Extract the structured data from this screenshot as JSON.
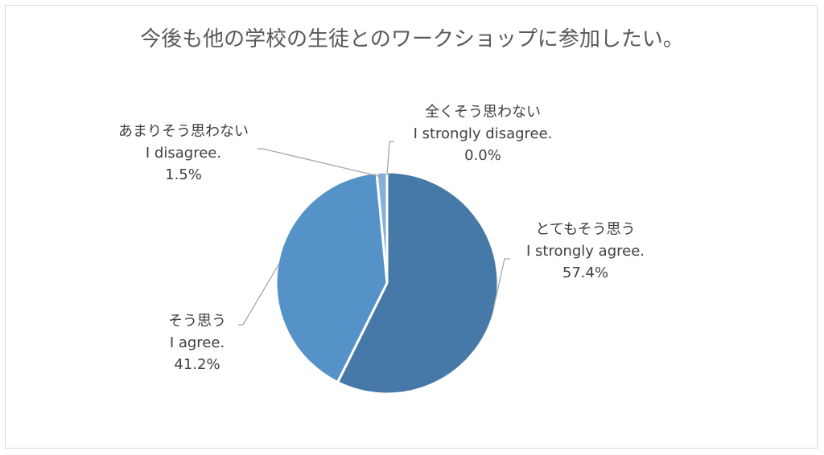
{
  "chart_data": {
    "type": "pie",
    "title": "今後も他の学校の生徒とのワークショップに参加したい。",
    "slices": [
      {
        "name_ja": "とてもそう思う",
        "name_en": "I strongly agree.",
        "value": 57.4,
        "label": "57.4%",
        "color": "#4779a8"
      },
      {
        "name_ja": "そう思う",
        "name_en": "I agree.",
        "value": 41.2,
        "label": "41.2%",
        "color": "#5592c8"
      },
      {
        "name_ja": "あまりそう思わない",
        "name_en": "I disagree.",
        "value": 1.5,
        "label": "1.5%",
        "color": "#86b0dc"
      },
      {
        "name_ja": "全くそう思わない",
        "name_en": "I strongly disagree.",
        "value": 0.0,
        "label": "0.0%",
        "color": "#a9c6e6"
      }
    ],
    "legend": "none",
    "data_labels": "outside with leader lines"
  }
}
